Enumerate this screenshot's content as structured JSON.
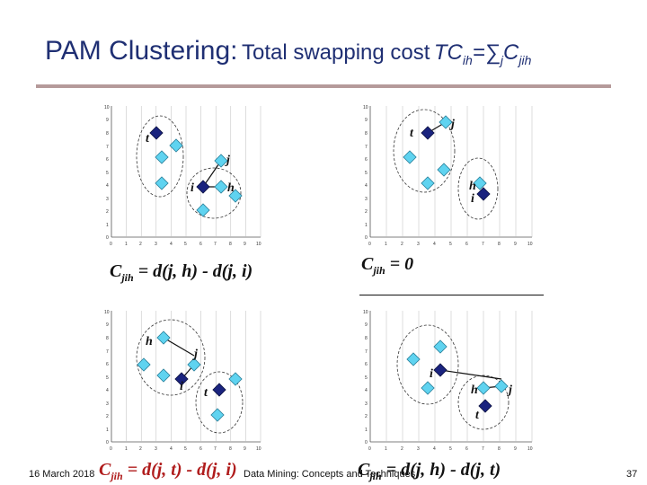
{
  "title": {
    "prefix": "PAM Clustering:",
    "middle": "Total swapping cost",
    "formula_tc": "TC",
    "formula_ih": "ih",
    "formula_eq": "=∑",
    "formula_j": "j",
    "formula_c": "C",
    "formula_jih": "jih"
  },
  "colors": {
    "title": "#1f2f73",
    "rule": "#b59a9a",
    "medoid": "#1a237e",
    "object": "#5fd3f0",
    "red_formula": "#b01c1c"
  },
  "panels": [
    {
      "formula": "Cjih = d(j, h) - d(j, i)",
      "formula_parts": {
        "c": "C",
        "sub": "jih",
        "rest": " = d(j, h) - d(j, i)"
      },
      "labels": {
        "t": "t",
        "j": "j",
        "i": "i",
        "h": "h"
      },
      "y_ticks": [
        "10",
        "9",
        "8",
        "7",
        "6",
        "5",
        "4",
        "3",
        "2",
        "1",
        "0"
      ],
      "x_ticks": [
        "0",
        "1",
        "2",
        "3",
        "4",
        "5",
        "6",
        "7",
        "8",
        "9",
        "10"
      ]
    },
    {
      "formula": "Cjih = 0",
      "formula_parts": {
        "c": "C",
        "sub": "jih",
        "rest": " = 0"
      },
      "labels": {
        "t": "t",
        "j": "j",
        "h": "h",
        "i": "i"
      },
      "y_ticks": [
        "10",
        "9",
        "8",
        "7",
        "6",
        "5",
        "4",
        "3",
        "2",
        "1",
        "0"
      ],
      "x_ticks": [
        "0",
        "1",
        "2",
        "3",
        "4",
        "5",
        "6",
        "7",
        "8",
        "9",
        "10"
      ]
    },
    {
      "formula": "Cjih = d(j, t) - d(j, i)",
      "formula_parts": {
        "c": "C",
        "sub": "jih",
        "rest": " = d(j, t) - d(j, i)"
      },
      "labels": {
        "h": "h",
        "j": "j",
        "i": "i",
        "t": "t"
      },
      "y_ticks": [
        "10",
        "9",
        "8",
        "7",
        "6",
        "5",
        "4",
        "3",
        "2",
        "1",
        "0"
      ],
      "x_ticks": [
        "0",
        "1",
        "2",
        "3",
        "4",
        "5",
        "6",
        "7",
        "8",
        "9",
        "10"
      ]
    },
    {
      "formula": "Cjih = d(j, h) - d(j, t)",
      "formula_parts": {
        "c": "C",
        "sub": "jih",
        "rest": " = d(j, h) - d(j, t)"
      },
      "labels": {
        "i": "i",
        "h": "h",
        "j": "j",
        "t": "t"
      },
      "y_ticks": [
        "10",
        "9",
        "8",
        "7",
        "6",
        "5",
        "4",
        "3",
        "2",
        "1",
        "0"
      ],
      "x_ticks": [
        "0",
        "1",
        "2",
        "3",
        "4",
        "5",
        "6",
        "7",
        "8",
        "9",
        "10"
      ]
    }
  ],
  "footer": {
    "date": "16 March 2018",
    "center": "Data Mining: Concepts and Techniques",
    "page": "37"
  }
}
